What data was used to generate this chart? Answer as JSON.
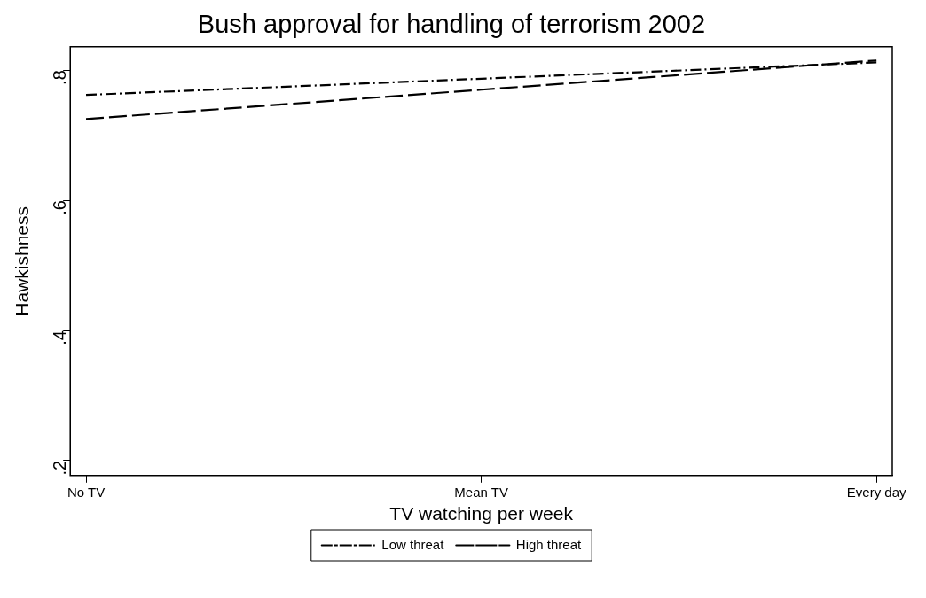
{
  "chart_data": {
    "type": "line",
    "title": "Bush approval for handling of terrorism 2002",
    "xlabel": "TV watching per week",
    "ylabel": "Hawkishness",
    "categories": [
      "No TV",
      "Mean TV",
      "Every day"
    ],
    "series": [
      {
        "name": "Low threat",
        "color": "#000000",
        "line_style": "dashdot",
        "values": [
          0.762,
          0.787,
          0.812
        ]
      },
      {
        "name": "High threat",
        "color": "#000000",
        "line_style": "dashed",
        "values": [
          0.725,
          0.77,
          0.815
        ]
      }
    ],
    "ylim": [
      0.177,
      0.836
    ],
    "yticks": [
      {
        "value": 0.2,
        "label": ".2"
      },
      {
        "value": 0.4,
        "label": ".4"
      },
      {
        "value": 0.6,
        "label": ".6"
      },
      {
        "value": 0.8,
        "label": ".8"
      }
    ],
    "grid": false,
    "legend": "bottom",
    "marker": "none"
  }
}
